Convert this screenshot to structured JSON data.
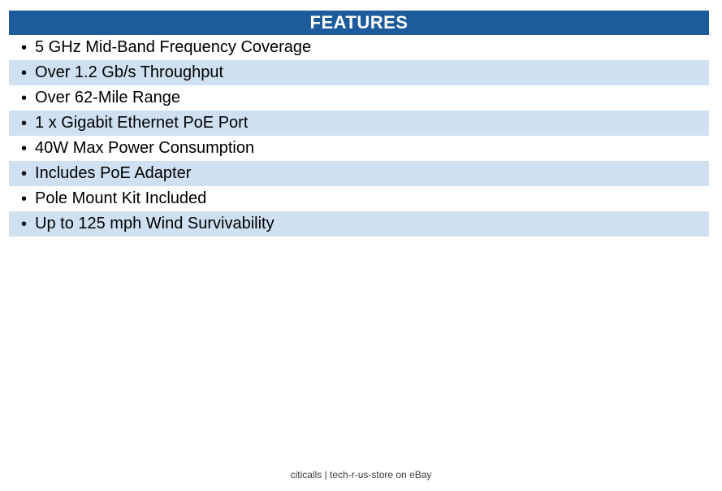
{
  "header": {
    "title": "FEATURES"
  },
  "bullet": "•",
  "features": [
    "5 GHz Mid-Band Frequency Coverage",
    "Over 1.2 Gb/s Throughput",
    "Over 62-Mile Range",
    "1 x Gigabit Ethernet PoE Port",
    "40W Max Power Consumption",
    "Includes PoE Adapter",
    "Pole Mount Kit Included",
    "Up to 125 mph Wind Survivability"
  ],
  "footer": {
    "text": "citicalls | tech-r-us-store on eBay"
  },
  "colors": {
    "header_bg": "#1c5c9d",
    "header_text": "#ffffff",
    "row_alt_bg": "#cfe0f1",
    "row_text": "#000000",
    "footer_text": "#3d3d3d"
  }
}
